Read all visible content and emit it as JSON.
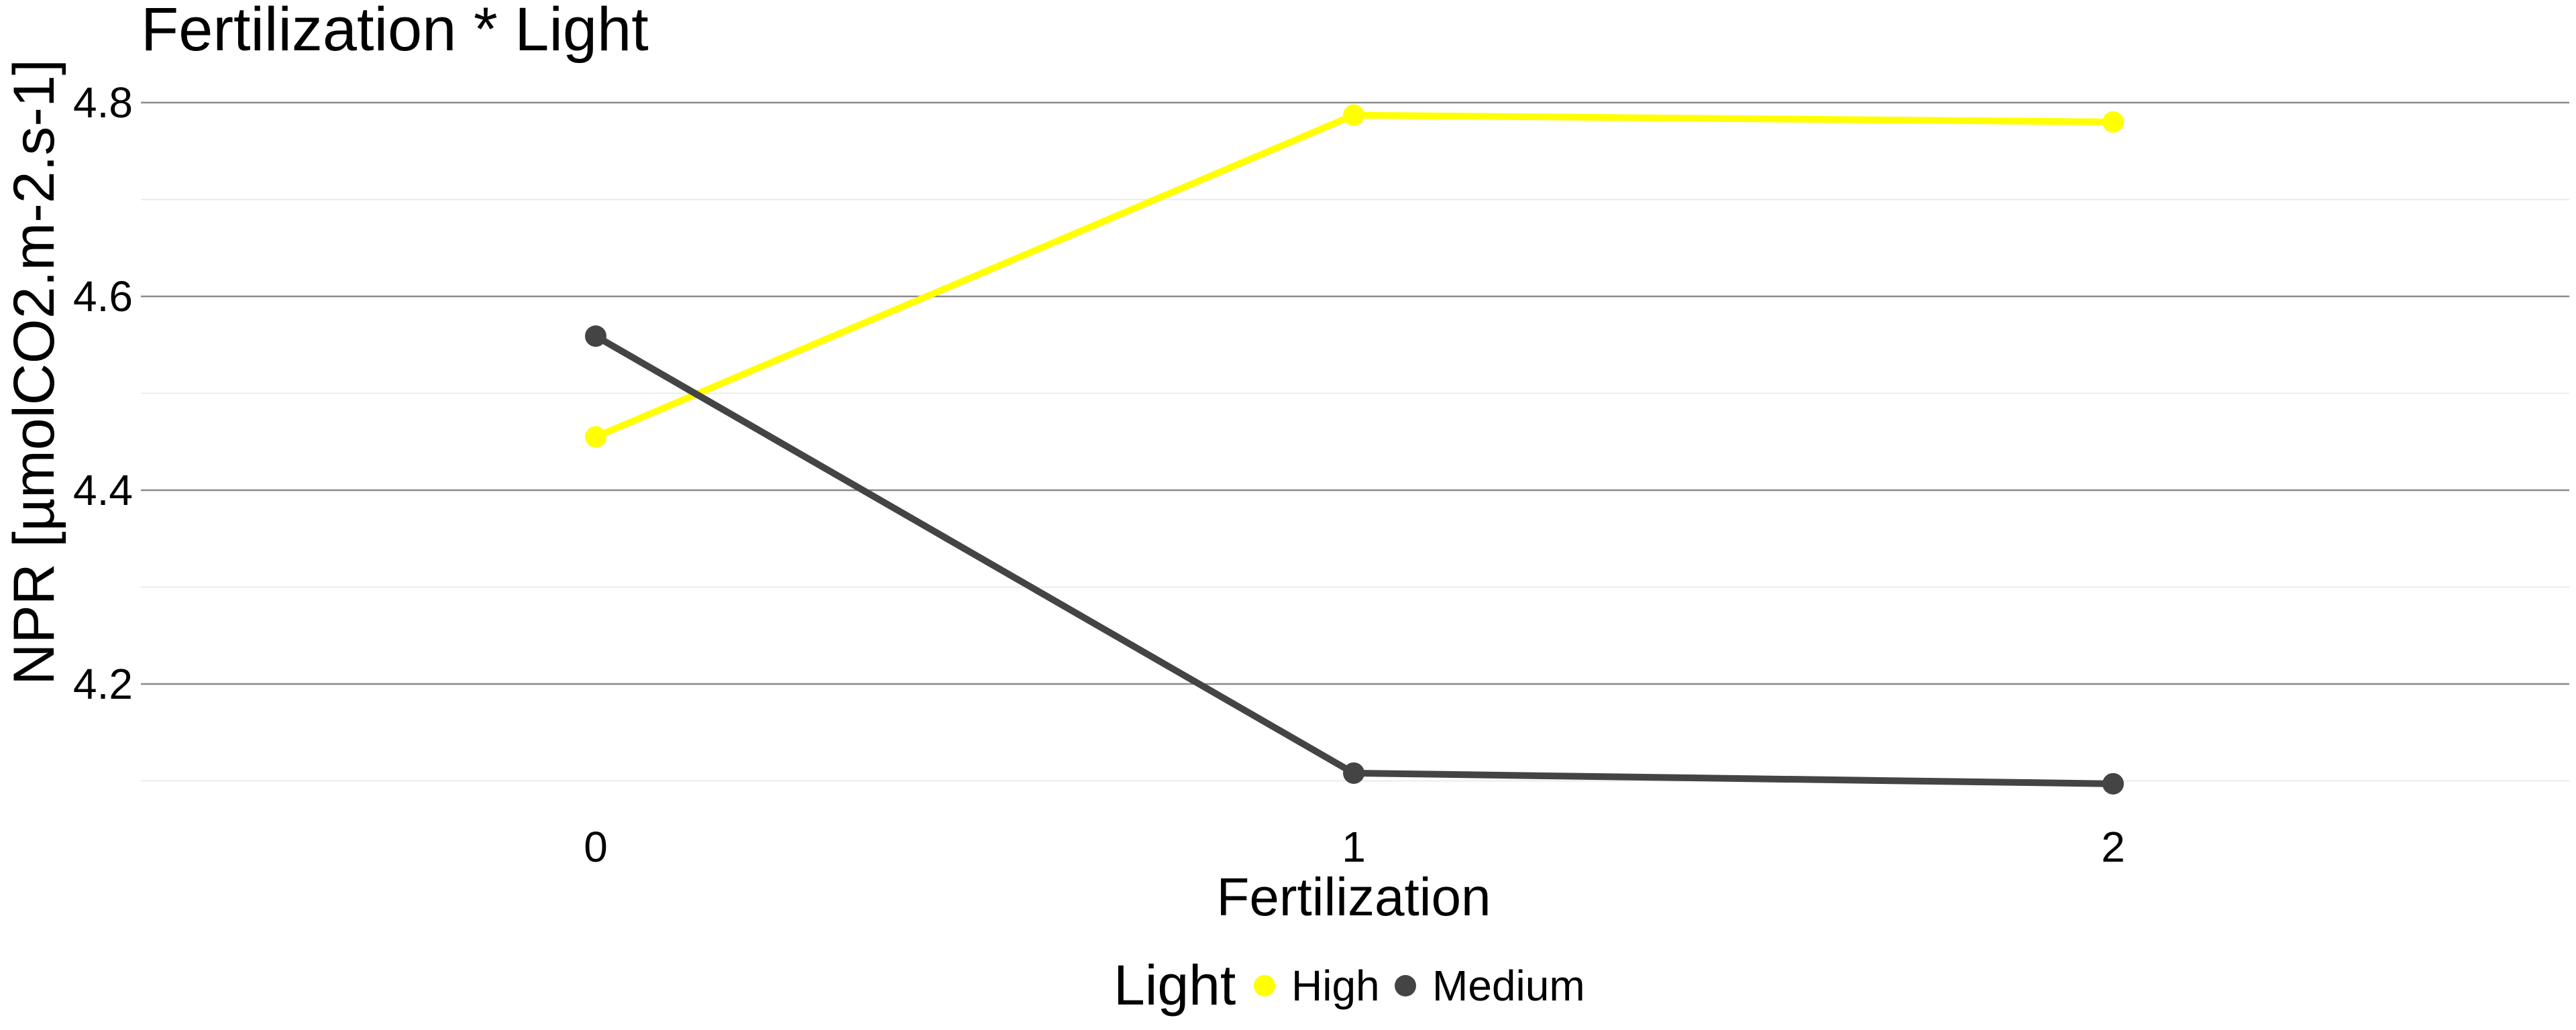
{
  "chart_data": {
    "type": "line",
    "title": "Fertilization * Light",
    "xlabel": "Fertilization",
    "ylabel": "NPR [µmolCO2.m-2.s-1]",
    "categories": [
      "0",
      "1",
      "2"
    ],
    "ylim": [
      4.1,
      4.84
    ],
    "yticks": [
      4.2,
      4.4,
      4.6,
      4.8
    ],
    "grid": true,
    "legend": {
      "title": "Light",
      "position": "bottom"
    },
    "series": [
      {
        "name": "High",
        "color": "#ffff00",
        "values": [
          4.455,
          4.787,
          4.78
        ]
      },
      {
        "name": "Medium",
        "color": "#444444",
        "values": [
          4.559,
          4.108,
          4.097
        ]
      }
    ]
  }
}
